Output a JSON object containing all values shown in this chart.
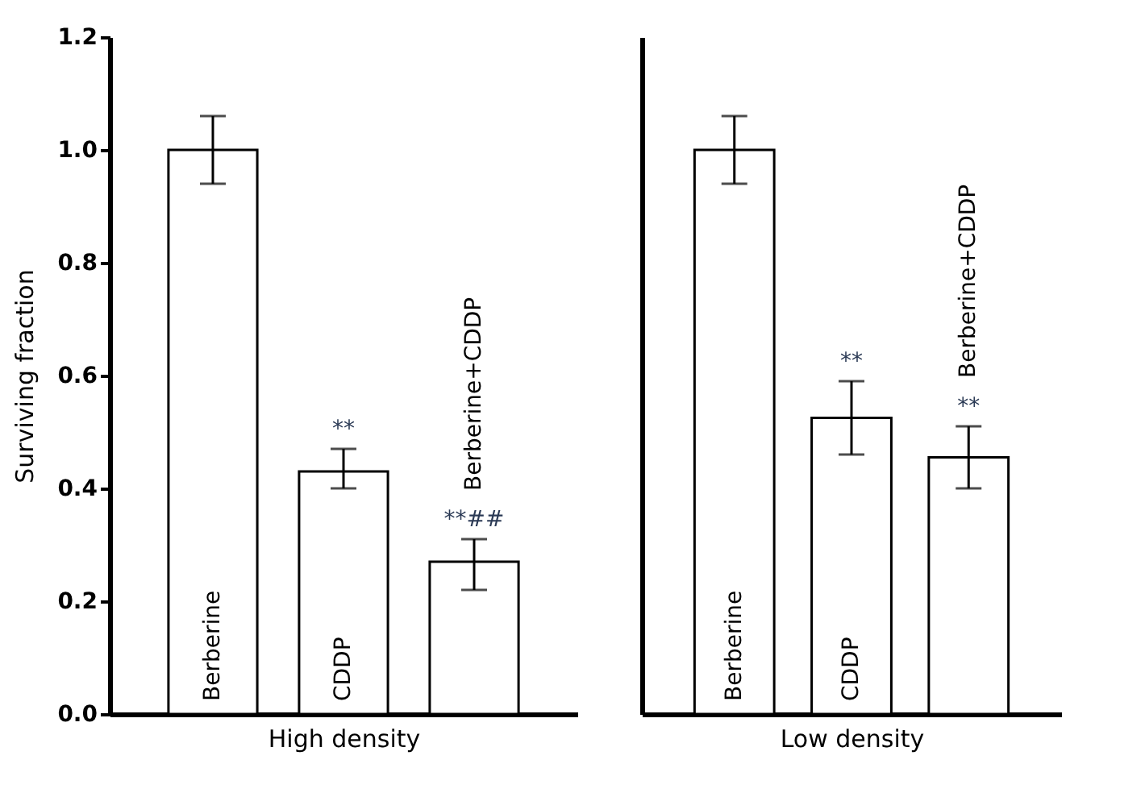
{
  "chart_data": [
    {
      "type": "bar",
      "xlabel": "High density",
      "ylabel": "Surviving fraction",
      "categories": [
        "Berberine",
        "CDDP",
        "Berberine+CDDP"
      ],
      "series": [
        {
          "color": "#ffffff",
          "values": [
            1.0,
            0.43,
            0.27
          ],
          "errors": [
            [
              0.94,
              1.06
            ],
            [
              0.4,
              0.47
            ],
            [
              0.22,
              0.31
            ]
          ]
        }
      ],
      "ylim": [
        0,
        1.2
      ],
      "yticks": [
        {
          "value": 0,
          "label": "0.0"
        },
        0.2,
        0.4,
        0.6,
        0.8,
        {
          "value": 1,
          "label": "1.0"
        },
        1.2
      ],
      "annotations": [
        {
          "text": "**",
          "x": "CDDP",
          "y": 0.43
        },
        {
          "text": "**##",
          "x": "Berberine+CDDP",
          "y": 0.27
        }
      ]
    },
    {
      "type": "bar",
      "xlabel": "Low density",
      "categories": [
        "Berberine",
        "CDDP",
        "Berberine+CDDP"
      ],
      "series": [
        {
          "color": "#ffffff",
          "values": [
            1.0,
            0.525,
            0.455
          ],
          "errors": [
            [
              0.94,
              1.06
            ],
            [
              0.46,
              0.59
            ],
            [
              0.4,
              0.51
            ]
          ]
        }
      ],
      "ylim": [
        0,
        1.2
      ],
      "tick_labels": "x",
      "annotations": [
        {
          "text": "**",
          "x": "CDDP",
          "y": 0.525
        },
        {
          "text": "**",
          "x": "Berberine+CDDP",
          "y": 0.455
        }
      ]
    }
  ]
}
